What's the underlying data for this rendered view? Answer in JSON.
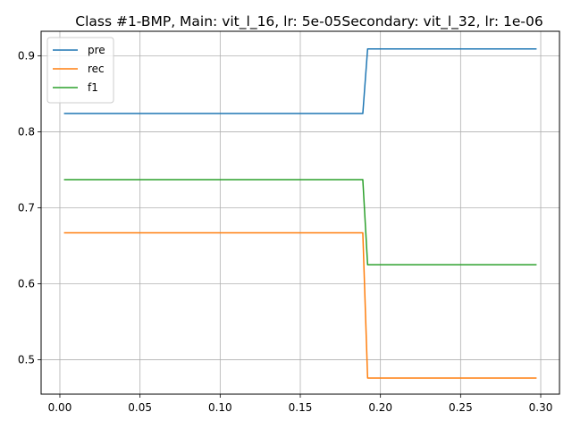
{
  "chart_data": {
    "type": "line",
    "title": "Class #1-BMP, Main: vit_l_16, lr: 5e-05Secondary: vit_l_32, lr: 1e-06",
    "xlabel": "",
    "ylabel": "",
    "xlim": [
      -0.0117,
      0.3117
    ],
    "ylim": [
      0.4548,
      0.9322
    ],
    "xticks": [
      0.0,
      0.05,
      0.1,
      0.15,
      0.2,
      0.25,
      0.3
    ],
    "xtick_labels": [
      "0.00",
      "0.05",
      "0.10",
      "0.15",
      "0.20",
      "0.25",
      "0.30"
    ],
    "yticks": [
      0.5,
      0.6,
      0.7,
      0.8,
      0.9
    ],
    "ytick_labels": [
      "0.5",
      "0.6",
      "0.7",
      "0.8",
      "0.9"
    ],
    "grid": true,
    "legend_position": "top-left",
    "series": [
      {
        "name": "pre",
        "color": "#1f77b4",
        "x": [
          0.003,
          0.189,
          0.192,
          0.297
        ],
        "y": [
          0.824,
          0.824,
          0.909,
          0.909
        ]
      },
      {
        "name": "rec",
        "color": "#ff7f0e",
        "x": [
          0.003,
          0.189,
          0.192,
          0.297
        ],
        "y": [
          0.667,
          0.667,
          0.476,
          0.476
        ]
      },
      {
        "name": "f1",
        "color": "#2ca02c",
        "x": [
          0.003,
          0.189,
          0.192,
          0.297
        ],
        "y": [
          0.737,
          0.737,
          0.625,
          0.625
        ]
      }
    ]
  }
}
